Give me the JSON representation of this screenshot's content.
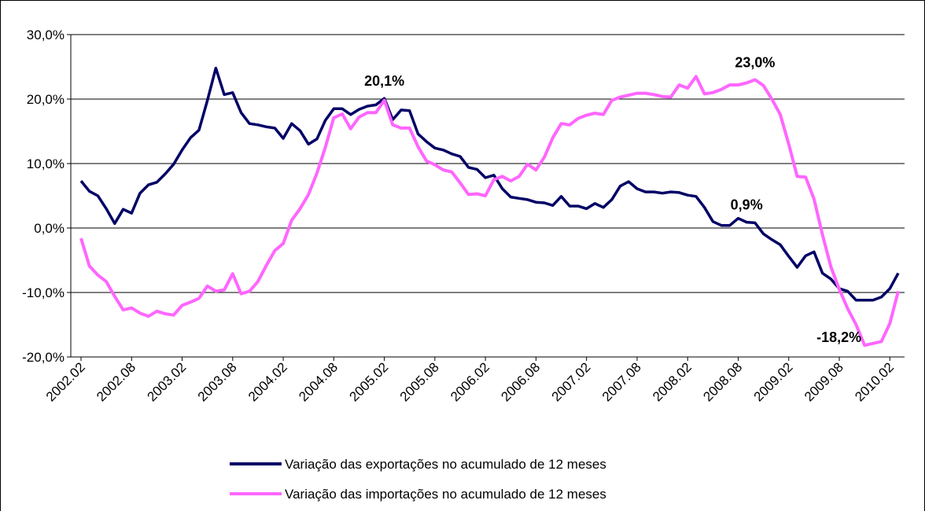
{
  "chart_data": {
    "type": "line",
    "categories": [
      "2002.02",
      null,
      null,
      null,
      null,
      null,
      "2002.08",
      null,
      null,
      null,
      null,
      null,
      "2003.02",
      null,
      null,
      null,
      null,
      null,
      "2003.08",
      null,
      null,
      null,
      null,
      null,
      "2004.02",
      null,
      null,
      null,
      null,
      null,
      "2004.08",
      null,
      null,
      null,
      null,
      null,
      "2005.02",
      null,
      null,
      null,
      null,
      null,
      "2005.08",
      null,
      null,
      null,
      null,
      null,
      "2006.02",
      null,
      null,
      null,
      null,
      null,
      "2006.08",
      null,
      null,
      null,
      null,
      null,
      "2007.02",
      null,
      null,
      null,
      null,
      null,
      "2007.08",
      null,
      null,
      null,
      null,
      null,
      "2008.02",
      null,
      null,
      null,
      null,
      null,
      "2008.08",
      null,
      null,
      null,
      null,
      null,
      "2009.02",
      null,
      null,
      null,
      null,
      null,
      "2009.08",
      null,
      null,
      null,
      null,
      null,
      "2010.02",
      null
    ],
    "series": [
      {
        "name": "Variação das exportações no acumulado de 12 meses",
        "color": "#000066",
        "values": [
          7.3,
          5.7,
          5.0,
          3.0,
          0.7,
          2.9,
          2.3,
          5.4,
          6.7,
          7.1,
          8.4,
          9.9,
          12.1,
          14.0,
          15.2,
          19.8,
          24.8,
          20.7,
          21.0,
          17.9,
          16.2,
          16.0,
          15.7,
          15.5,
          13.9,
          16.2,
          15.1,
          13.0,
          13.8,
          16.7,
          18.5,
          18.5,
          17.6,
          18.4,
          18.9,
          19.1,
          20.1,
          16.8,
          18.3,
          18.2,
          14.6,
          13.4,
          12.4,
          12.1,
          11.5,
          11.1,
          9.4,
          9.1,
          7.8,
          8.2,
          6.1,
          4.8,
          4.6,
          4.4,
          4.0,
          3.9,
          3.5,
          4.9,
          3.4,
          3.4,
          3.0,
          3.8,
          3.2,
          4.4,
          6.5,
          7.2,
          6.1,
          5.6,
          5.6,
          5.4,
          5.6,
          5.5,
          5.1,
          4.9,
          3.2,
          1.0,
          0.4,
          0.4,
          1.5,
          0.9,
          0.8,
          -0.9,
          -1.8,
          -2.6,
          -4.4,
          -6.1,
          -4.3,
          -3.7,
          -7.0,
          -7.9,
          -9.4,
          -9.8,
          -11.2,
          -11.2,
          -11.2,
          -10.7,
          -9.4,
          -7.0
        ],
        "value_labels": [
          null,
          null,
          null,
          null,
          null,
          null,
          null,
          null,
          null,
          null,
          null,
          null,
          null,
          null,
          null,
          null,
          null,
          null,
          null,
          null,
          null,
          null,
          null,
          null,
          null,
          null,
          null,
          null,
          null,
          null,
          null,
          null,
          null,
          null,
          null,
          null,
          "20,1%",
          null,
          null,
          null,
          null,
          null,
          null,
          null,
          null,
          null,
          null,
          null,
          null,
          null,
          null,
          null,
          null,
          null,
          null,
          null,
          null,
          null,
          null,
          null,
          null,
          null,
          null,
          null,
          null,
          null,
          null,
          null,
          null,
          null,
          null,
          null,
          null,
          null,
          null,
          null,
          null,
          null,
          null,
          "0,9%",
          null,
          null,
          null,
          null,
          null,
          null,
          null,
          null,
          null,
          null,
          null,
          null,
          null,
          null,
          null,
          null,
          null,
          null
        ]
      },
      {
        "name": "Variação das importações no acumulado de 12 meses",
        "color": "#ff66ff",
        "values": [
          -1.6,
          -5.9,
          -7.3,
          -8.3,
          -10.6,
          -12.7,
          -12.4,
          -13.2,
          -13.7,
          -12.9,
          -13.3,
          -13.5,
          -12.0,
          -11.5,
          -10.9,
          -9.0,
          -9.8,
          -9.6,
          -7.1,
          -10.2,
          -9.8,
          -8.3,
          -5.8,
          -3.5,
          -2.4,
          1.2,
          3.0,
          5.2,
          8.5,
          12.5,
          17.1,
          17.7,
          15.4,
          17.2,
          17.9,
          17.9,
          19.8,
          16.0,
          15.5,
          15.5,
          12.6,
          10.4,
          9.8,
          9.0,
          8.7,
          7.0,
          5.2,
          5.3,
          5.0,
          7.5,
          8.0,
          7.3,
          8.0,
          9.9,
          9.0,
          11.0,
          14.0,
          16.2,
          16.0,
          17.0,
          17.5,
          17.8,
          17.6,
          19.8,
          20.3,
          20.6,
          20.9,
          20.9,
          20.7,
          20.4,
          20.3,
          22.2,
          21.7,
          23.5,
          20.8,
          21.0,
          21.5,
          22.2,
          22.2,
          22.5,
          23.0,
          22.1,
          20.0,
          17.6,
          13.0,
          8.0,
          7.9,
          4.5,
          -1.0,
          -6.0,
          -9.5,
          -12.5,
          -15.0,
          -18.2,
          -17.9,
          -17.6,
          -14.8,
          -9.8
        ],
        "value_labels": [
          null,
          null,
          null,
          null,
          null,
          null,
          null,
          null,
          null,
          null,
          null,
          null,
          null,
          null,
          null,
          null,
          null,
          null,
          null,
          null,
          null,
          null,
          null,
          null,
          null,
          null,
          null,
          null,
          null,
          null,
          null,
          null,
          null,
          null,
          null,
          null,
          null,
          null,
          null,
          null,
          null,
          null,
          null,
          null,
          null,
          null,
          null,
          null,
          null,
          null,
          null,
          null,
          null,
          null,
          null,
          null,
          null,
          null,
          null,
          null,
          null,
          null,
          null,
          null,
          null,
          null,
          null,
          null,
          null,
          null,
          null,
          null,
          null,
          null,
          null,
          null,
          null,
          null,
          null,
          null,
          "23,0%",
          null,
          null,
          null,
          null,
          null,
          null,
          null,
          null,
          null,
          null,
          null,
          null,
          "-18,2%",
          null,
          null,
          null,
          null
        ]
      }
    ],
    "ylim": [
      -20,
      30
    ],
    "yticks": [
      {
        "value": -20,
        "label": "-20,0%"
      },
      {
        "value": -10,
        "label": "-10,0%"
      },
      {
        "value": 0,
        "label": "0,0%"
      },
      {
        "value": 10,
        "label": "10,0%"
      },
      {
        "value": 20,
        "label": "20,0%"
      },
      {
        "value": 30,
        "label": "30,0%"
      }
    ],
    "grid": true,
    "legend": "bottom"
  }
}
